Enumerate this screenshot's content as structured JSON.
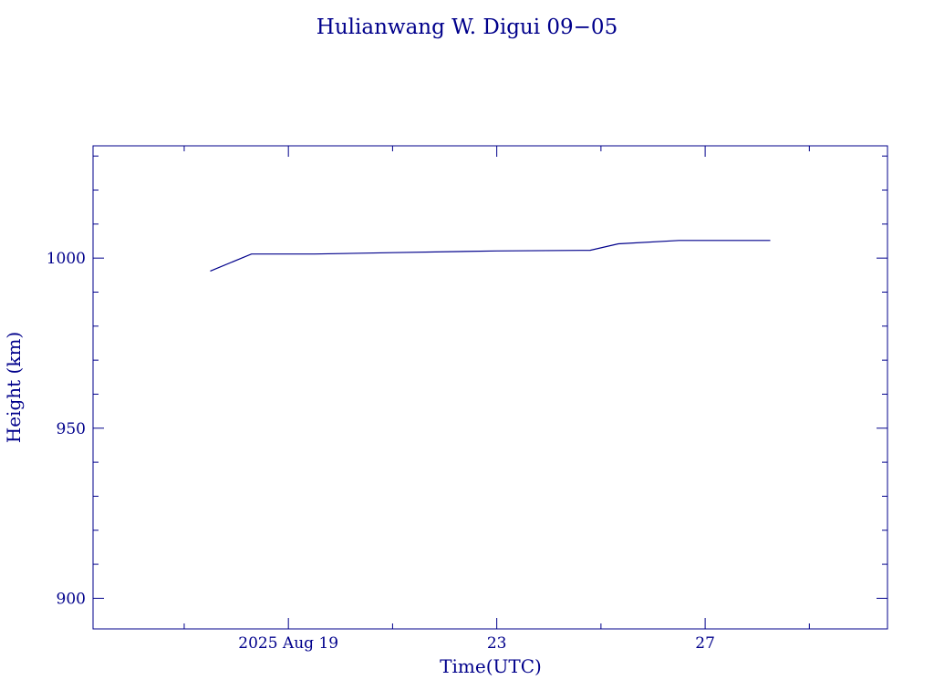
{
  "chart_data": {
    "type": "line",
    "title": "Hulianwang W. Digui 09−05",
    "xlabel": "Time(UTC)",
    "ylabel": "Height (km)",
    "ylim": [
      891,
      1033
    ],
    "xlim": [
      "2025-08-15T06:00:00Z",
      "2025-08-30T12:00:00Z"
    ],
    "x_ticks": [
      {
        "date": "2025-08-19",
        "label": "2025 Aug 19"
      },
      {
        "date": "2025-08-23",
        "label": "23"
      },
      {
        "date": "2025-08-27",
        "label": "27"
      }
    ],
    "y_ticks": [
      {
        "value": 900,
        "label": "900"
      },
      {
        "value": 950,
        "label": "950"
      },
      {
        "value": 1000,
        "label": "1000"
      }
    ],
    "series": [
      {
        "x": [
          "2025-08-17T12:00:00Z",
          "2025-08-18T07:00:00Z",
          "2025-08-19T12:00:00Z",
          "2025-08-21T00:00:00Z",
          "2025-08-23T00:00:00Z",
          "2025-08-24T19:00:00Z",
          "2025-08-25T08:00:00Z",
          "2025-08-26T12:00:00Z",
          "2025-08-28T06:00:00Z"
        ],
        "y": [
          996.2,
          1001.2,
          1001.2,
          1001.6,
          1002.1,
          1002.3,
          1004.2,
          1005.2,
          1005.2
        ]
      }
    ],
    "grid": false,
    "colors": {
      "axis": "#00008b",
      "line": "#00008b",
      "text": "#00008b"
    }
  }
}
